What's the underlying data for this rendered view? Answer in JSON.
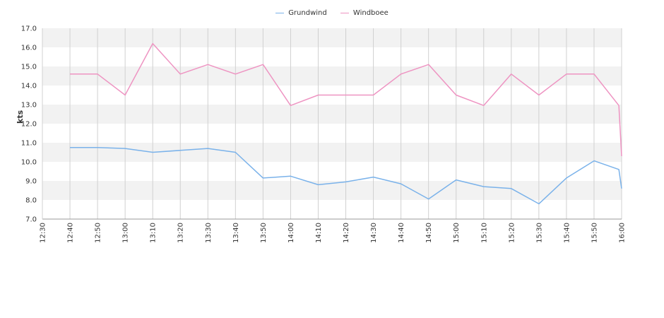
{
  "chart_data": {
    "type": "line",
    "title": "",
    "xlabel": "",
    "ylabel": "kts",
    "ylim": [
      7.0,
      17.0
    ],
    "yticks": [
      "7.0",
      "8.0",
      "9.0",
      "10.0",
      "11.0",
      "12.0",
      "13.0",
      "14.0",
      "15.0",
      "16.0",
      "17.0"
    ],
    "x": [
      "12:30",
      "12:40",
      "12:50",
      "13:00",
      "13:10",
      "13:20",
      "13:30",
      "13:40",
      "13:50",
      "14:00",
      "14:10",
      "14:20",
      "14:30",
      "14:40",
      "14:50",
      "15:00",
      "15:10",
      "15:20",
      "15:30",
      "15:40",
      "15:50",
      "16:00"
    ],
    "grid": "vertical lines and alternating horizontal bands",
    "legend_position": "top-center",
    "series": [
      {
        "name": "Grundwind",
        "color": "#7ab2ea",
        "points": [
          [
            "12:40",
            10.75
          ],
          [
            "12:50",
            10.75
          ],
          [
            "13:00",
            10.7
          ],
          [
            "13:10",
            10.5
          ],
          [
            "13:20",
            10.6
          ],
          [
            "13:30",
            10.7
          ],
          [
            "13:40",
            10.5
          ],
          [
            "13:50",
            9.15
          ],
          [
            "14:00",
            9.25
          ],
          [
            "14:10",
            8.8
          ],
          [
            "14:20",
            8.95
          ],
          [
            "14:30",
            9.2
          ],
          [
            "14:40",
            8.85
          ],
          [
            "14:50",
            8.05
          ],
          [
            "15:00",
            9.05
          ],
          [
            "15:10",
            8.7
          ],
          [
            "15:20",
            8.6
          ],
          [
            "15:30",
            7.8
          ],
          [
            "15:40",
            9.15
          ],
          [
            "15:50",
            10.05
          ],
          [
            "15:59",
            9.6
          ],
          [
            "16:00",
            8.6
          ]
        ]
      },
      {
        "name": "Windboee",
        "color": "#ee94c2",
        "points": [
          [
            "12:40",
            14.6
          ],
          [
            "12:50",
            14.6
          ],
          [
            "13:00",
            13.5
          ],
          [
            "13:10",
            16.2
          ],
          [
            "13:20",
            14.6
          ],
          [
            "13:30",
            15.1
          ],
          [
            "13:40",
            14.6
          ],
          [
            "13:50",
            15.1
          ],
          [
            "14:00",
            12.95
          ],
          [
            "14:10",
            13.5
          ],
          [
            "14:20",
            13.5
          ],
          [
            "14:30",
            13.5
          ],
          [
            "14:40",
            14.6
          ],
          [
            "14:50",
            15.1
          ],
          [
            "15:00",
            13.5
          ],
          [
            "15:10",
            12.95
          ],
          [
            "15:20",
            14.6
          ],
          [
            "15:30",
            13.5
          ],
          [
            "15:40",
            14.6
          ],
          [
            "15:50",
            14.6
          ],
          [
            "15:59",
            12.95
          ],
          [
            "16:00",
            10.3
          ]
        ]
      }
    ]
  }
}
